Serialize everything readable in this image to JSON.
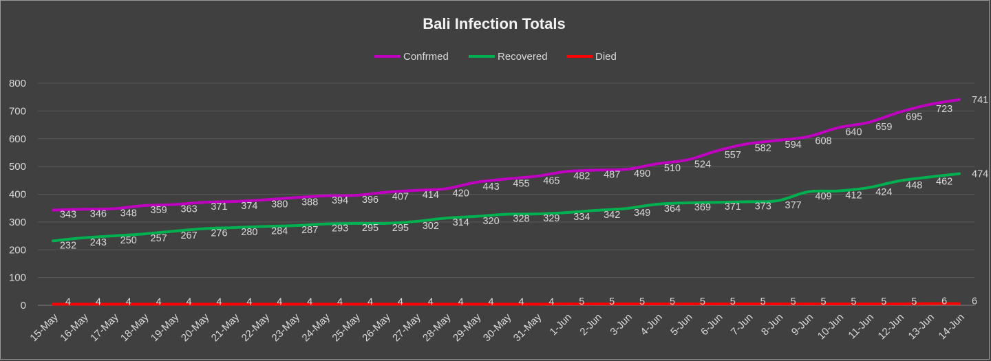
{
  "chart_data": {
    "type": "line",
    "title": "Bali Infection Totals",
    "xlabel": "",
    "ylabel": "",
    "ylim": [
      0,
      800
    ],
    "yticks": [
      0,
      100,
      200,
      300,
      400,
      500,
      600,
      700,
      800
    ],
    "grid": true,
    "legend_position": "top",
    "categories": [
      "15-May",
      "16-May",
      "17-May",
      "18-May",
      "19-May",
      "20-May",
      "21-May",
      "22-May",
      "23-May",
      "24-May",
      "25-May",
      "26-May",
      "27-May",
      "28-May",
      "29-May",
      "30-May",
      "31-May",
      "1-Jun",
      "2-Jun",
      "3-Jun",
      "4-Jun",
      "5-Jun",
      "6-Jun",
      "7-Jun",
      "8-Jun",
      "9-Jun",
      "10-Jun",
      "11-Jun",
      "12-Jun",
      "13-Jun",
      "14-Jun"
    ],
    "series": [
      {
        "name": "Confrmed",
        "color": "#c000c0",
        "values": [
          343,
          346,
          348,
          359,
          363,
          371,
          374,
          380,
          388,
          394,
          396,
          407,
          414,
          420,
          443,
          455,
          465,
          482,
          487,
          490,
          510,
          524,
          557,
          582,
          594,
          608,
          640,
          659,
          695,
          723,
          741
        ]
      },
      {
        "name": "Recovered",
        "color": "#00b050",
        "values": [
          232,
          243,
          250,
          257,
          267,
          276,
          280,
          284,
          287,
          293,
          295,
          295,
          302,
          314,
          320,
          328,
          329,
          334,
          342,
          349,
          364,
          369,
          371,
          373,
          377,
          409,
          412,
          424,
          448,
          462,
          474
        ]
      },
      {
        "name": "Died",
        "color": "#ff0000",
        "values": [
          4,
          4,
          4,
          4,
          4,
          4,
          4,
          4,
          4,
          4,
          4,
          4,
          4,
          4,
          4,
          4,
          4,
          5,
          5,
          5,
          5,
          5,
          5,
          5,
          5,
          5,
          5,
          5,
          5,
          6,
          6
        ]
      }
    ]
  }
}
